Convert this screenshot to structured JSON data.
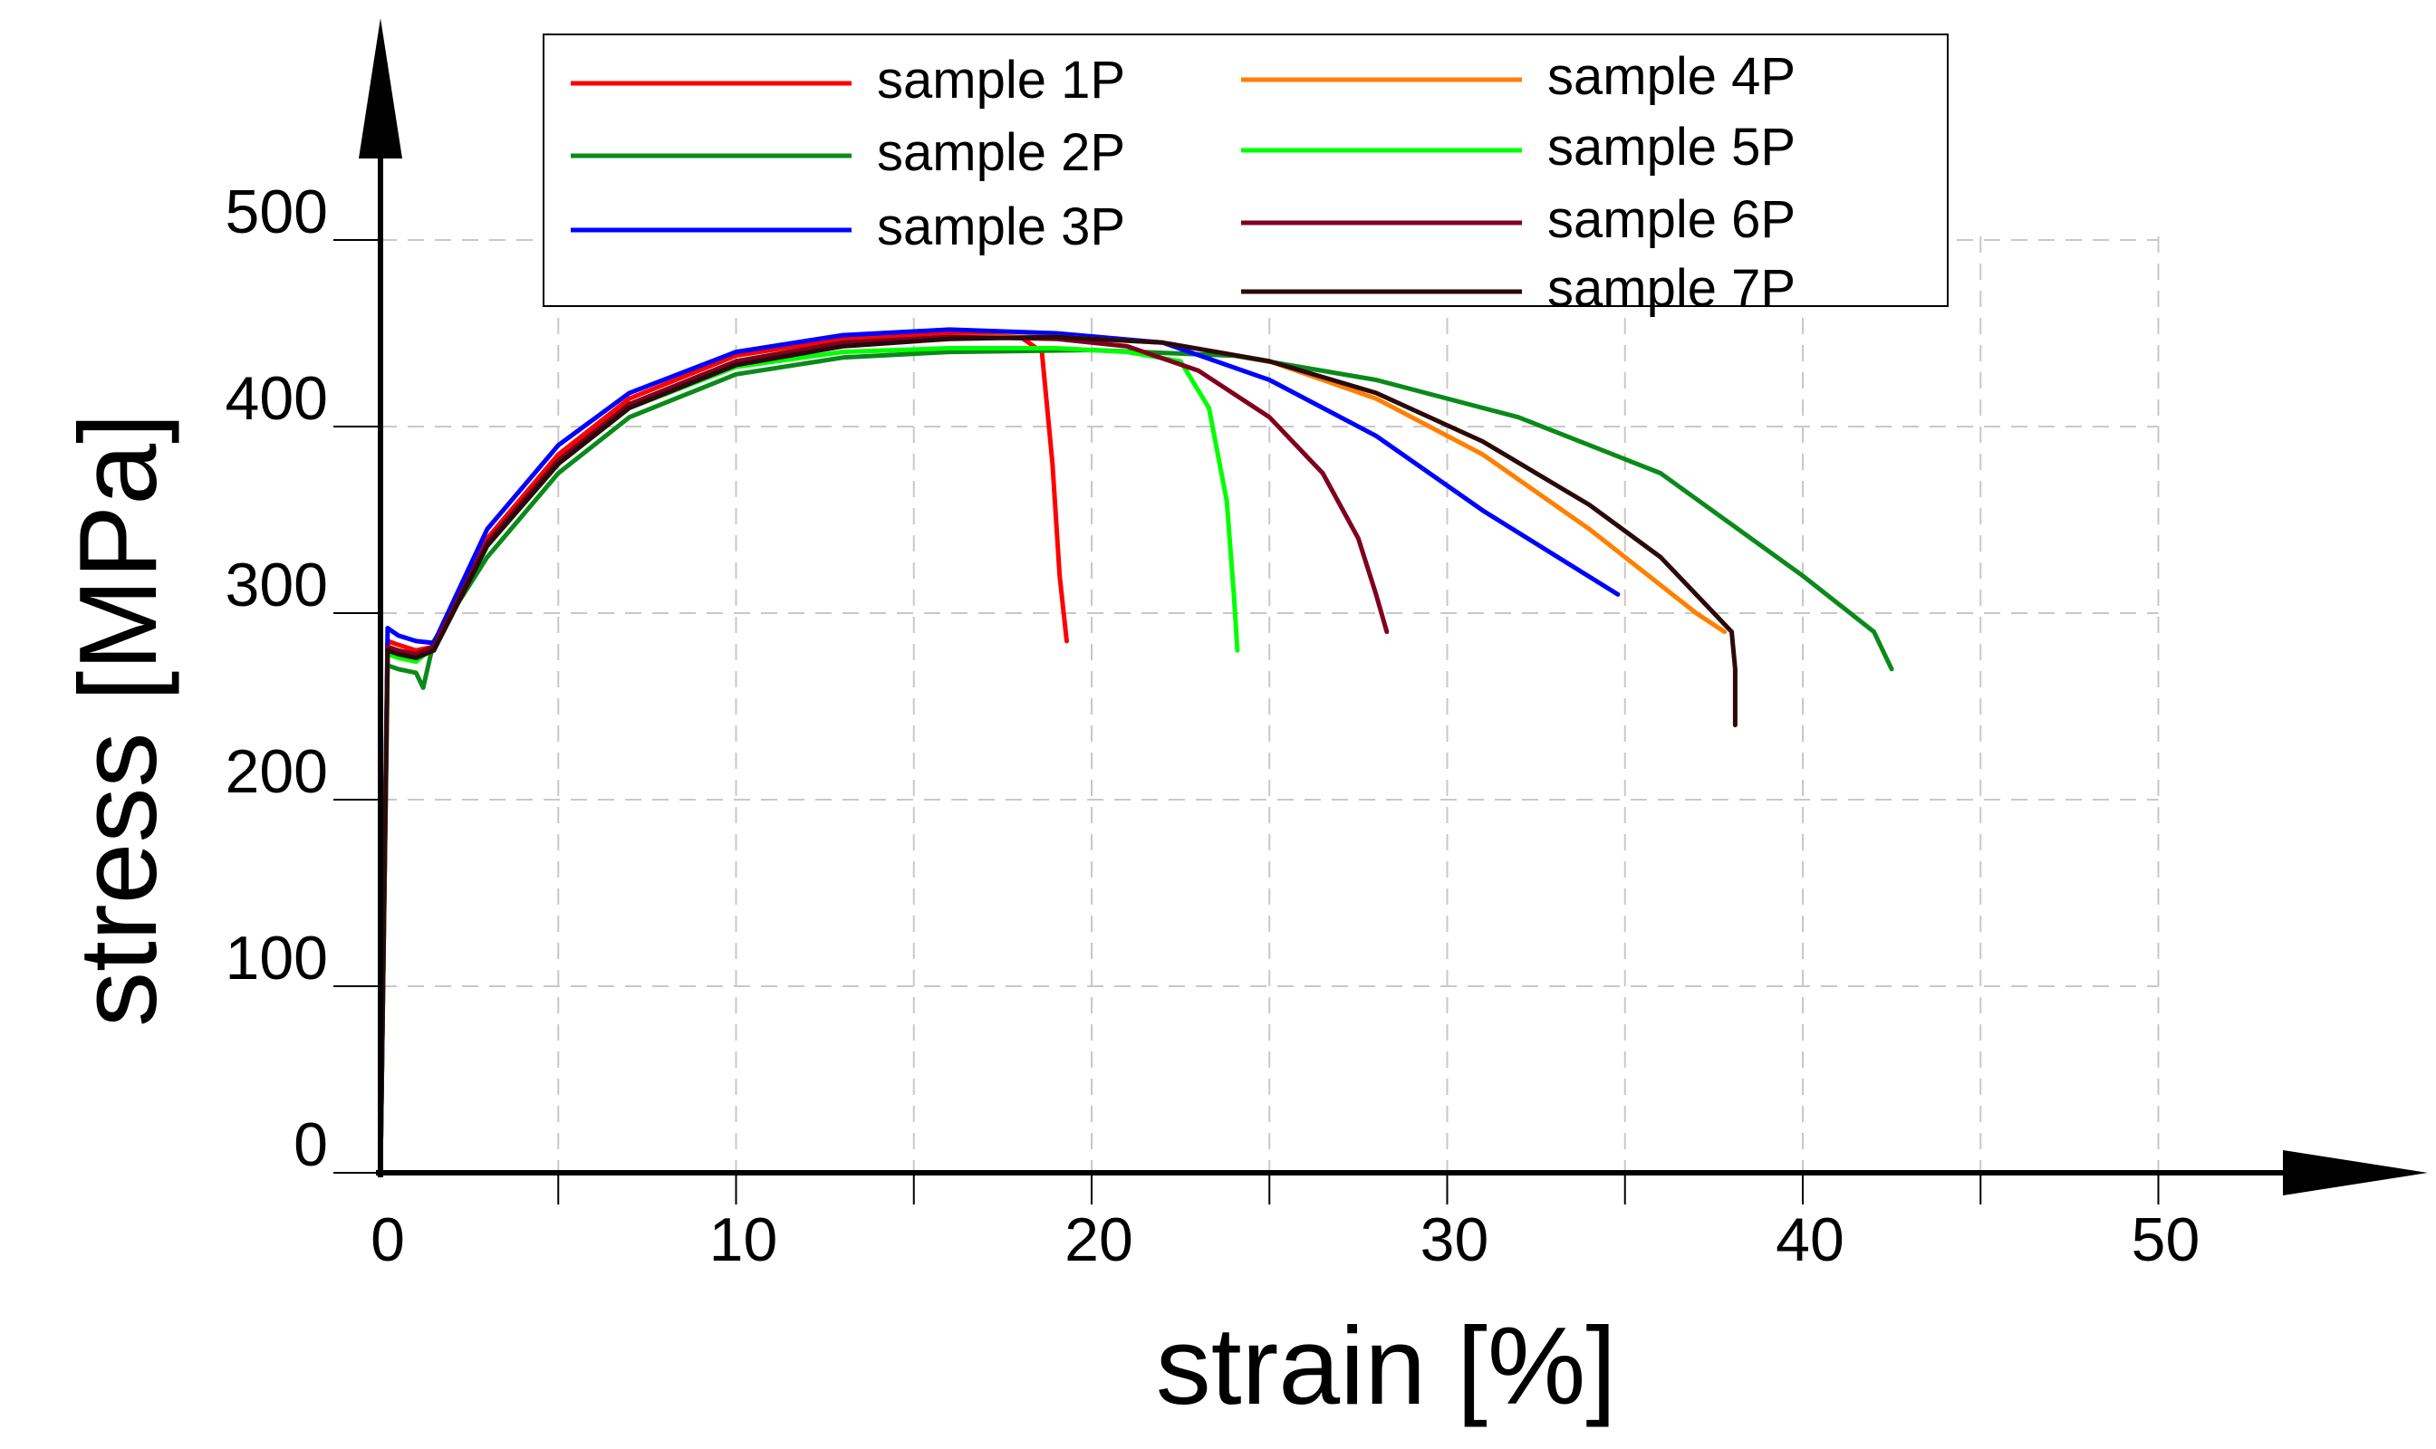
{
  "chart_data": {
    "type": "line",
    "title": "",
    "xlabel": "strain [%]",
    "ylabel": "stress [MPa]",
    "xlim": [
      0,
      50
    ],
    "ylim": [
      0,
      500
    ],
    "xticks": [
      0,
      10,
      20,
      30,
      40,
      50
    ],
    "yticks": [
      0,
      100,
      200,
      300,
      400,
      500
    ],
    "xtick_labels": [
      "0",
      "10",
      "20",
      "30",
      "40",
      "50"
    ],
    "ytick_labels": [
      "0",
      "100",
      "200",
      "300",
      "400",
      "500"
    ],
    "grid": true,
    "legend_position": "top-center",
    "series": [
      {
        "name": "sample 1P",
        "color": "#ff0000",
        "x": [
          0,
          0.2,
          0.5,
          1.0,
          1.5,
          3,
          5,
          7,
          10,
          13,
          16,
          18,
          18.6,
          18.9,
          19.1,
          19.3
        ],
        "y": [
          0,
          285,
          283,
          280,
          282,
          340,
          385,
          415,
          438,
          447,
          450,
          448,
          440,
          380,
          320,
          285
        ]
      },
      {
        "name": "sample 2P",
        "color": "#0a8a1a",
        "x": [
          0,
          0.2,
          0.5,
          1.0,
          1.2,
          1.5,
          3,
          5,
          7,
          10,
          13,
          16,
          20,
          24,
          28,
          32,
          36,
          40,
          42,
          42.5
        ],
        "y": [
          0,
          272,
          270,
          268,
          260,
          285,
          330,
          375,
          405,
          428,
          437,
          440,
          441,
          438,
          425,
          405,
          375,
          320,
          290,
          270
        ]
      },
      {
        "name": "sample 3P",
        "color": "#0000ff",
        "x": [
          0,
          0.2,
          0.5,
          1.0,
          1.5,
          3,
          5,
          7,
          10,
          13,
          16,
          19,
          22,
          25,
          28,
          31,
          34.8
        ],
        "y": [
          0,
          292,
          288,
          285,
          284,
          345,
          390,
          418,
          440,
          449,
          452,
          450,
          445,
          425,
          395,
          355,
          310
        ]
      },
      {
        "name": "sample 4P",
        "color": "#ff8000",
        "x": [
          0,
          0.2,
          0.5,
          1.0,
          1.5,
          3,
          5,
          7,
          10,
          13,
          16,
          19,
          22,
          25,
          28,
          31,
          34,
          37,
          37.8
        ],
        "y": [
          0,
          280,
          278,
          276,
          280,
          338,
          382,
          412,
          435,
          445,
          448,
          448,
          445,
          435,
          415,
          385,
          345,
          300,
          290
        ]
      },
      {
        "name": "sample 5P",
        "color": "#00ff00",
        "x": [
          0,
          0.2,
          0.5,
          1.0,
          1.5,
          3,
          5,
          7,
          10,
          13,
          16,
          19,
          21,
          22.5,
          23.3,
          23.8,
          24.0,
          24.1
        ],
        "y": [
          0,
          278,
          276,
          274,
          282,
          336,
          380,
          410,
          432,
          440,
          442,
          442,
          440,
          435,
          410,
          360,
          310,
          280
        ]
      },
      {
        "name": "sample 6P",
        "color": "#800020",
        "x": [
          0,
          0.2,
          0.5,
          1.0,
          1.5,
          3,
          5,
          7,
          10,
          13,
          16,
          19,
          21,
          23,
          25,
          26.5,
          27.5,
          28.0,
          28.3
        ],
        "y": [
          0,
          282,
          280,
          278,
          282,
          338,
          382,
          412,
          435,
          445,
          448,
          447,
          443,
          430,
          405,
          375,
          340,
          310,
          290
        ]
      },
      {
        "name": "sample 7P",
        "color": "#2a0a0a",
        "x": [
          0,
          0.2,
          0.5,
          1.0,
          1.5,
          3,
          5,
          7,
          10,
          13,
          16,
          19,
          22,
          25,
          28,
          31,
          34,
          36,
          37.5,
          38.0,
          38.1,
          38.1
        ],
        "y": [
          0,
          280,
          278,
          276,
          280,
          336,
          380,
          410,
          433,
          443,
          447,
          448,
          445,
          435,
          418,
          392,
          358,
          330,
          300,
          290,
          270,
          240
        ]
      }
    ]
  }
}
